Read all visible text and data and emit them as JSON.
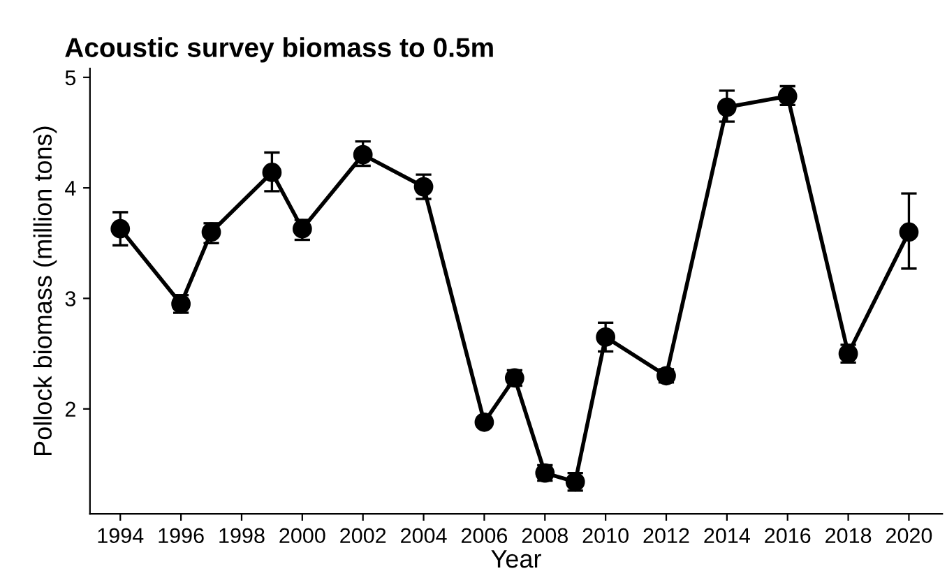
{
  "chart_data": {
    "type": "line",
    "title": "Acoustic survey biomass to 0.5m",
    "xlabel": "Year",
    "ylabel": "Pollock biomass (million tons)",
    "x": [
      1994,
      1996,
      1997,
      1999,
      2000,
      2002,
      2004,
      2006,
      2007,
      2008,
      2009,
      2010,
      2012,
      2014,
      2016,
      2018,
      2020
    ],
    "values": [
      3.63,
      2.95,
      3.6,
      4.14,
      3.63,
      4.3,
      4.01,
      1.88,
      2.28,
      1.42,
      1.34,
      2.65,
      2.3,
      4.73,
      4.83,
      2.5,
      3.6
    ],
    "errors": [
      [
        3.48,
        3.78
      ],
      [
        2.87,
        3.03
      ],
      [
        3.5,
        3.68
      ],
      [
        3.97,
        4.32
      ],
      [
        3.53,
        3.71
      ],
      [
        4.2,
        4.42
      ],
      [
        3.9,
        4.12
      ],
      [
        1.84,
        1.92
      ],
      [
        2.21,
        2.35
      ],
      [
        1.35,
        1.49
      ],
      [
        1.26,
        1.42
      ],
      [
        2.52,
        2.78
      ],
      [
        2.24,
        2.36
      ],
      [
        4.6,
        4.88
      ],
      [
        4.75,
        4.92
      ],
      [
        2.42,
        2.58
      ],
      [
        3.27,
        3.95
      ]
    ],
    "color": "#000000",
    "marker": "circle",
    "line_style": "solid",
    "xlim": [
      1993,
      2021.1
    ],
    "ylim": [
      1.05,
      5.08
    ],
    "xticks": [
      1994,
      1996,
      1998,
      2000,
      2002,
      2004,
      2006,
      2008,
      2010,
      2012,
      2014,
      2016,
      2018,
      2020
    ],
    "yticks": [
      2,
      3,
      4,
      5
    ],
    "grid": false
  }
}
